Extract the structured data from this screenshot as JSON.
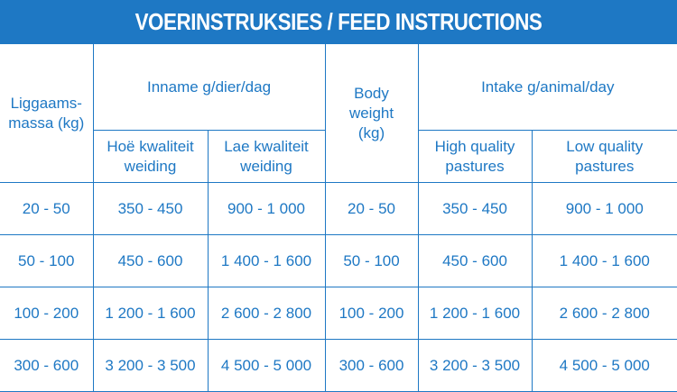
{
  "title": "VOERINSTRUKSIES / FEED INSTRUCTIONS",
  "headers": {
    "af_mass_1": "Liggaams-",
    "af_mass_2": "massa (kg)",
    "af_intake_group": "Inname g/dier/dag",
    "af_high_1": "Hoë kwaliteit",
    "af_high_2": "weiding",
    "af_low_1": "Lae kwaliteit",
    "af_low_2": "weiding",
    "en_mass_1": "Body",
    "en_mass_2": "weight",
    "en_mass_3": "(kg)",
    "en_intake_group": "Intake g/animal/day",
    "en_high_1": "High quality",
    "en_high_2": "pastures",
    "en_low_1": "Low quality",
    "en_low_2": "pastures"
  },
  "rows": [
    {
      "mass": "20 - 50",
      "high": "350 - 450",
      "low": "900 - 1 000",
      "mass_en": "20 - 50",
      "high_en": "350 - 450",
      "low_en": "900 - 1 000"
    },
    {
      "mass": "50 - 100",
      "high": "450 - 600",
      "low": "1 400 - 1 600",
      "mass_en": "50 - 100",
      "high_en": "450 - 600",
      "low_en": "1 400 - 1 600"
    },
    {
      "mass": "100 - 200",
      "high": "1 200 - 1 600",
      "low": "2 600 - 2 800",
      "mass_en": "100 - 200",
      "high_en": "1 200 - 1 600",
      "low_en": "2 600 - 2 800"
    },
    {
      "mass": "300 - 600",
      "high": "3 200 - 3 500",
      "low": "4 500 - 5 000",
      "mass_en": "300 - 600",
      "high_en": "3 200 - 3 500",
      "low_en": "4 500 - 5 000"
    }
  ],
  "colors": {
    "accent": "#1e78c4",
    "text": "#1e78c4",
    "background": "#ffffff"
  }
}
